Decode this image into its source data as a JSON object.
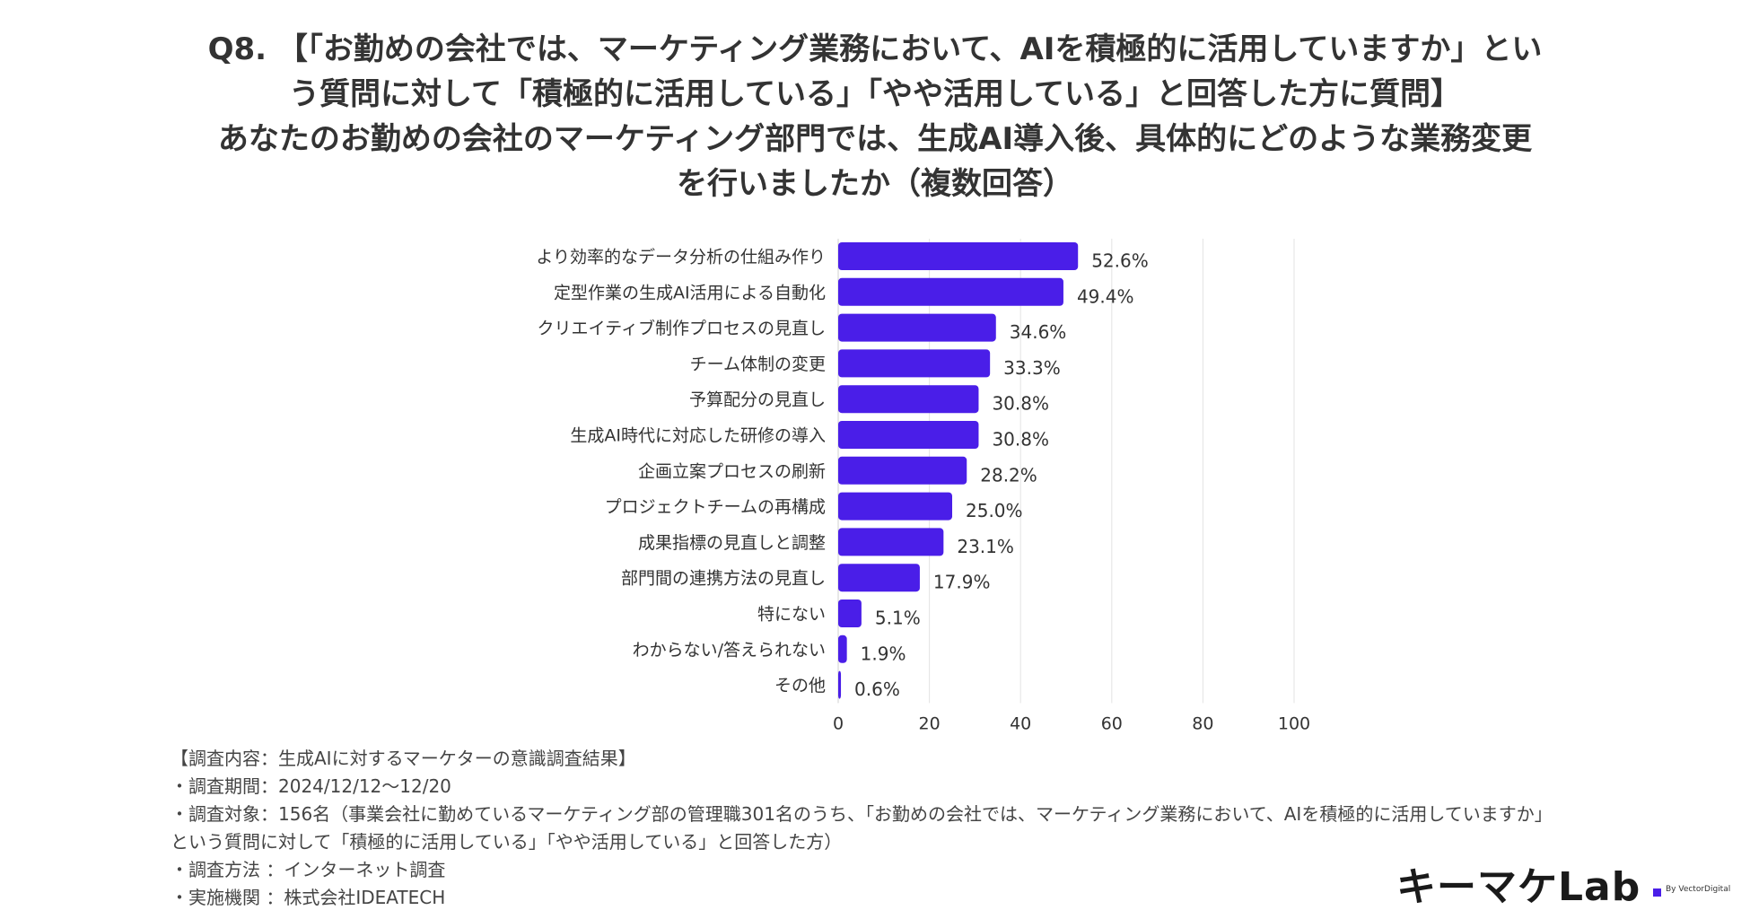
{
  "title_lines": [
    "Q8. 【「お勤めの会社では、マーケティング業務において、AIを積極的に活用していますか」とい",
    "う質問に対して「積極的に活用している」「やや活用している」と回答した方に質問】",
    "あなたのお勤めの会社のマーケティング部門では、生成AI導入後、具体的にどのような業務変更",
    "を行いましたか（複数回答）"
  ],
  "chart_data": {
    "type": "bar",
    "orientation": "horizontal",
    "categories": [
      "より効率的なデータ分析の仕組み作り",
      "定型作業の生成AI活用による自動化",
      "クリエイティブ制作プロセスの見直し",
      "チーム体制の変更",
      "予算配分の見直し",
      "生成AI時代に対応した研修の導入",
      "企画立案プロセスの刷新",
      "プロジェクトチームの再構成",
      "成果指標の見直しと調整",
      "部門間の連携方法の見直し",
      "特にない",
      "わからない/答えられない",
      "その他"
    ],
    "values": [
      52.6,
      49.4,
      34.6,
      33.3,
      30.8,
      30.8,
      28.2,
      25.0,
      23.1,
      17.9,
      5.1,
      1.9,
      0.6
    ],
    "value_labels": [
      "52.6%",
      "49.4%",
      "34.6%",
      "33.3%",
      "30.8%",
      "30.8%",
      "28.2%",
      "25.0%",
      "23.1%",
      "17.9%",
      "5.1%",
      "1.9%",
      "0.6%"
    ],
    "xlim": [
      0,
      100
    ],
    "xticks": [
      0,
      20,
      40,
      60,
      80,
      100
    ],
    "xtick_labels": [
      "0",
      "20",
      "40",
      "60",
      "80",
      "100"
    ],
    "grid": true,
    "bar_color": "#4a1ee8"
  },
  "notes": [
    "【調査内容：生成AIに対するマーケターの意識調査結果】",
    "・調査期間：2024/12/12〜12/20",
    "・調査対象：156名（事業会社に勤めているマーケティング部の管理職301名のうち、「お勤めの会社では、マーケティング業務において、AIを積極的に活用していますか」",
    "という質問に対して「積極的に活用している」「やや活用している」と回答した方）",
    "・調査方法 ：インターネット調査",
    "・実施機関 ：株式会社IDEATECH"
  ],
  "logo": {
    "mark": "キーマケLab",
    "by": "By VectorDigital"
  }
}
